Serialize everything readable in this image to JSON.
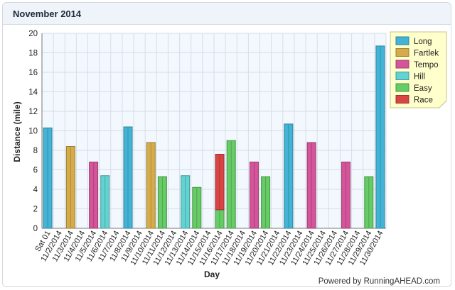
{
  "header": {
    "title": "November 2014"
  },
  "footer": {
    "powered_by": "Powered by RunningAHEAD.com"
  },
  "colors": {
    "Long": "#44b4d6",
    "Fartlek": "#d6ac4a",
    "Tempo": "#d5559a",
    "Hill": "#63d2d2",
    "Easy": "#66cc66",
    "Race": "#d94444",
    "plot_bg": "#f2f8fd",
    "grid": "#d6dde5"
  },
  "chart_data": {
    "type": "bar",
    "stacked": true,
    "xlabel": "Day",
    "ylabel": "Distance (mile)",
    "ylim": [
      0,
      20
    ],
    "yticks": [
      0,
      2,
      4,
      6,
      8,
      10,
      12,
      14,
      16,
      18,
      20
    ],
    "grid": true,
    "legend_position": "top-right",
    "categories": [
      "Sat 01",
      "11/2/2014",
      "11/3/2014",
      "11/4/2014",
      "11/5/2014",
      "11/6/2014",
      "11/7/2014",
      "11/8/2014",
      "11/9/2014",
      "11/10/2014",
      "11/11/2014",
      "11/12/2014",
      "11/13/2014",
      "11/14/2014",
      "11/15/2014",
      "11/16/2014",
      "11/17/2014",
      "11/18/2014",
      "11/19/2014",
      "11/20/2014",
      "11/21/2014",
      "11/22/2014",
      "11/23/2014",
      "11/24/2014",
      "11/25/2014",
      "11/26/2014",
      "11/27/2014",
      "11/28/2014",
      "11/29/2014",
      "11/30/2014"
    ],
    "series": [
      {
        "name": "Long",
        "values": [
          10.3,
          0,
          0,
          0,
          0,
          0,
          0,
          10.4,
          0,
          0,
          0,
          0,
          0,
          0,
          0,
          0,
          0,
          0,
          0,
          0,
          0,
          10.7,
          0,
          0,
          0,
          0,
          0,
          0,
          0,
          18.7
        ]
      },
      {
        "name": "Fartlek",
        "values": [
          0,
          0,
          8.4,
          0,
          0,
          0,
          0,
          0,
          0,
          8.8,
          0,
          0,
          0,
          0,
          0,
          0,
          0,
          0,
          0,
          0,
          0,
          0,
          0,
          0,
          0,
          0,
          0,
          0,
          0,
          0
        ]
      },
      {
        "name": "Tempo",
        "values": [
          0,
          0,
          0,
          0,
          6.8,
          0,
          0,
          0,
          0,
          0,
          0,
          0,
          0,
          0,
          0,
          0,
          0,
          0,
          6.8,
          0,
          0,
          0,
          0,
          8.8,
          0,
          0,
          6.8,
          0,
          0,
          0
        ]
      },
      {
        "name": "Hill",
        "values": [
          0,
          0,
          0,
          0,
          0,
          5.4,
          0,
          0,
          0,
          0,
          0,
          0,
          5.4,
          0,
          0,
          0,
          0,
          0,
          0,
          0,
          0,
          0,
          0,
          0,
          0,
          0,
          0,
          0,
          0,
          0
        ]
      },
      {
        "name": "Easy",
        "values": [
          0,
          0,
          0,
          0,
          0,
          0,
          0,
          0,
          0,
          0,
          5.3,
          0,
          0,
          4.2,
          0,
          1.9,
          9.0,
          0,
          0,
          5.3,
          0,
          0,
          0,
          0,
          0,
          0,
          0,
          0,
          5.3,
          0
        ]
      },
      {
        "name": "Race",
        "values": [
          0,
          0,
          0,
          0,
          0,
          0,
          0,
          0,
          0,
          0,
          0,
          0,
          0,
          0,
          0,
          5.7,
          0,
          0,
          0,
          0,
          0,
          0,
          0,
          0,
          0,
          0,
          0,
          0,
          0,
          0
        ]
      }
    ]
  }
}
